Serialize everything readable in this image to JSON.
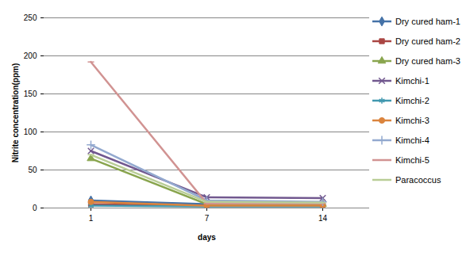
{
  "chart_data": {
    "type": "line",
    "x_label": "days",
    "y_label": "Nitrite concentration(ppm)",
    "categories": [
      "1",
      "7",
      "14"
    ],
    "ylim": [
      0,
      250
    ],
    "yticks": [
      0,
      50,
      100,
      150,
      200,
      250
    ],
    "grid": true,
    "legend": "right",
    "series": [
      {
        "name": "Dry cured ham-1",
        "color": "#4572A7",
        "marker": "diamond",
        "values": [
          10,
          5,
          5
        ]
      },
      {
        "name": "Dry cured ham-2",
        "color": "#AA4643",
        "marker": "square",
        "values": [
          5,
          3,
          3
        ]
      },
      {
        "name": "Dry cured ham-3",
        "color": "#89A54E",
        "marker": "triangle",
        "values": [
          65,
          5,
          5
        ]
      },
      {
        "name": "Kimchi-1",
        "color": "#71588F",
        "marker": "x",
        "values": [
          75,
          14,
          13
        ]
      },
      {
        "name": "Kimchi-2",
        "color": "#4198AF",
        "marker": "asterisk",
        "values": [
          3,
          2,
          2
        ]
      },
      {
        "name": "Kimchi-3",
        "color": "#DB843D",
        "marker": "circle",
        "values": [
          8,
          3,
          3
        ]
      },
      {
        "name": "Kimchi-4",
        "color": "#93A9CF",
        "marker": "plus",
        "values": [
          83,
          10,
          8
        ]
      },
      {
        "name": "Kimchi-5",
        "color": "#D19392",
        "marker": "dash",
        "values": [
          192,
          6,
          6
        ]
      },
      {
        "name": "Paracoccus",
        "color": "#B9CD96",
        "marker": "dash",
        "values": [
          70,
          8,
          7
        ]
      }
    ]
  }
}
